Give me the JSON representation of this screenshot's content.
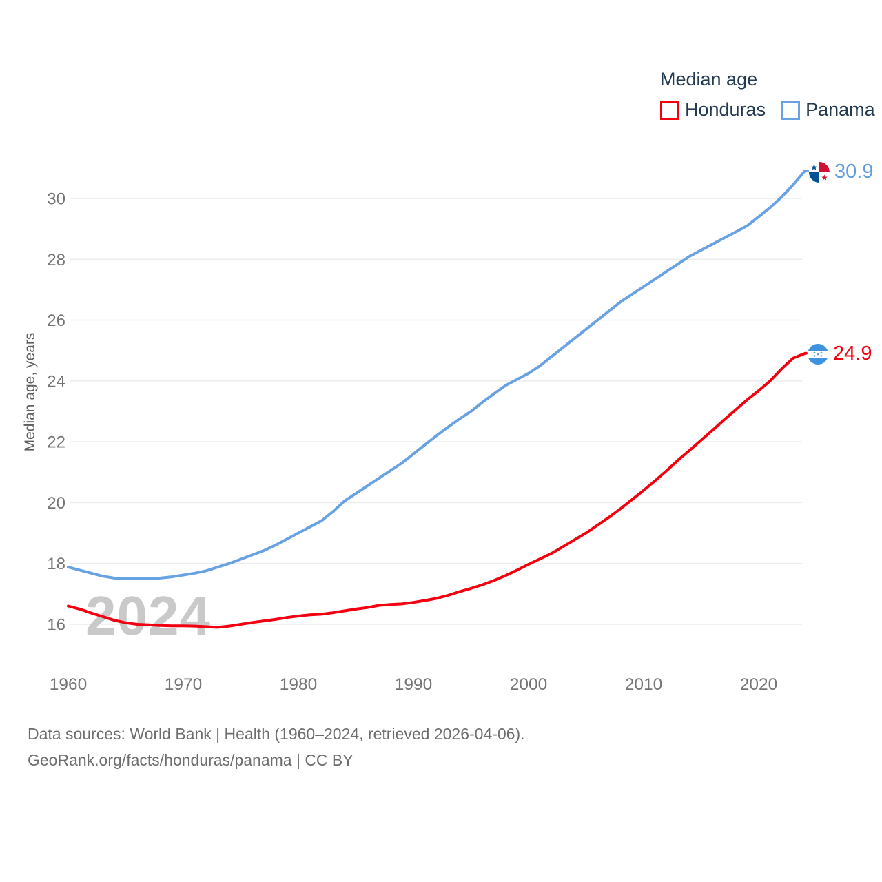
{
  "legend": {
    "title": "Median age",
    "items": [
      {
        "label": "Honduras",
        "color": "#f2000f"
      },
      {
        "label": "Panama",
        "color": "#68a2e3"
      }
    ]
  },
  "end_labels": {
    "panama": "30.9",
    "honduras": "24.9"
  },
  "watermark": "2024",
  "footer": {
    "line1": "Data sources: World Bank | Health (1960–2024, retrieved 2026-04-06).",
    "line2": "GeoRank.org/facts/honduras/panama | CC BY"
  },
  "colors": {
    "honduras_line": "#f2000f",
    "panama_line": "#68a2e3",
    "panama_end_text": "#5f9de0",
    "grid": "#ececec",
    "tick_text": "#757575",
    "legend_text": "#243a52",
    "watermark": "#c9c9c9",
    "footer_text": "#6d6d6d"
  },
  "chart_data": {
    "type": "line",
    "title": "Median age",
    "xlabel": "",
    "ylabel": "Median age, years",
    "x_range": [
      1960,
      2024
    ],
    "x_step": 1,
    "x_ticks": [
      1960,
      1970,
      1980,
      1990,
      2000,
      2010,
      2020
    ],
    "y_ticks": [
      16,
      18,
      20,
      22,
      24,
      26,
      28,
      30
    ],
    "ylim": [
      15.4,
      31.4
    ],
    "grid": "horizontal-only",
    "legend_position": "top-right",
    "series": [
      {
        "name": "Honduras",
        "color": "#f2000f",
        "end_value": 24.9,
        "values": [
          16.6,
          16.5,
          16.37,
          16.25,
          16.13,
          16.05,
          16.0,
          15.98,
          15.96,
          15.95,
          15.95,
          15.94,
          15.92,
          15.9,
          15.94,
          16.0,
          16.06,
          16.11,
          16.16,
          16.22,
          16.27,
          16.31,
          16.33,
          16.38,
          16.44,
          16.5,
          16.55,
          16.62,
          16.65,
          16.67,
          16.72,
          16.78,
          16.85,
          16.95,
          17.07,
          17.18,
          17.3,
          17.44,
          17.6,
          17.78,
          17.97,
          18.15,
          18.33,
          18.55,
          18.78,
          19.0,
          19.26,
          19.52,
          19.8,
          20.1,
          20.4,
          20.72,
          21.05,
          21.4,
          21.72,
          22.05,
          22.38,
          22.72,
          23.05,
          23.38,
          23.68,
          24.0,
          24.4,
          24.75,
          24.9
        ]
      },
      {
        "name": "Panama",
        "color": "#68a2e3",
        "end_value": 30.9,
        "values": [
          17.88,
          17.78,
          17.68,
          17.58,
          17.52,
          17.5,
          17.5,
          17.5,
          17.52,
          17.56,
          17.62,
          17.68,
          17.76,
          17.88,
          18.0,
          18.14,
          18.28,
          18.42,
          18.6,
          18.8,
          19.0,
          19.2,
          19.4,
          19.7,
          20.05,
          20.3,
          20.55,
          20.8,
          21.05,
          21.3,
          21.6,
          21.9,
          22.2,
          22.48,
          22.75,
          23.0,
          23.3,
          23.58,
          23.85,
          24.05,
          24.25,
          24.5,
          24.8,
          25.1,
          25.4,
          25.7,
          26.0,
          26.3,
          26.6,
          26.85,
          27.1,
          27.35,
          27.6,
          27.85,
          28.1,
          28.3,
          28.5,
          28.7,
          28.9,
          29.1,
          29.4,
          29.7,
          30.05,
          30.45,
          30.9
        ]
      }
    ]
  }
}
